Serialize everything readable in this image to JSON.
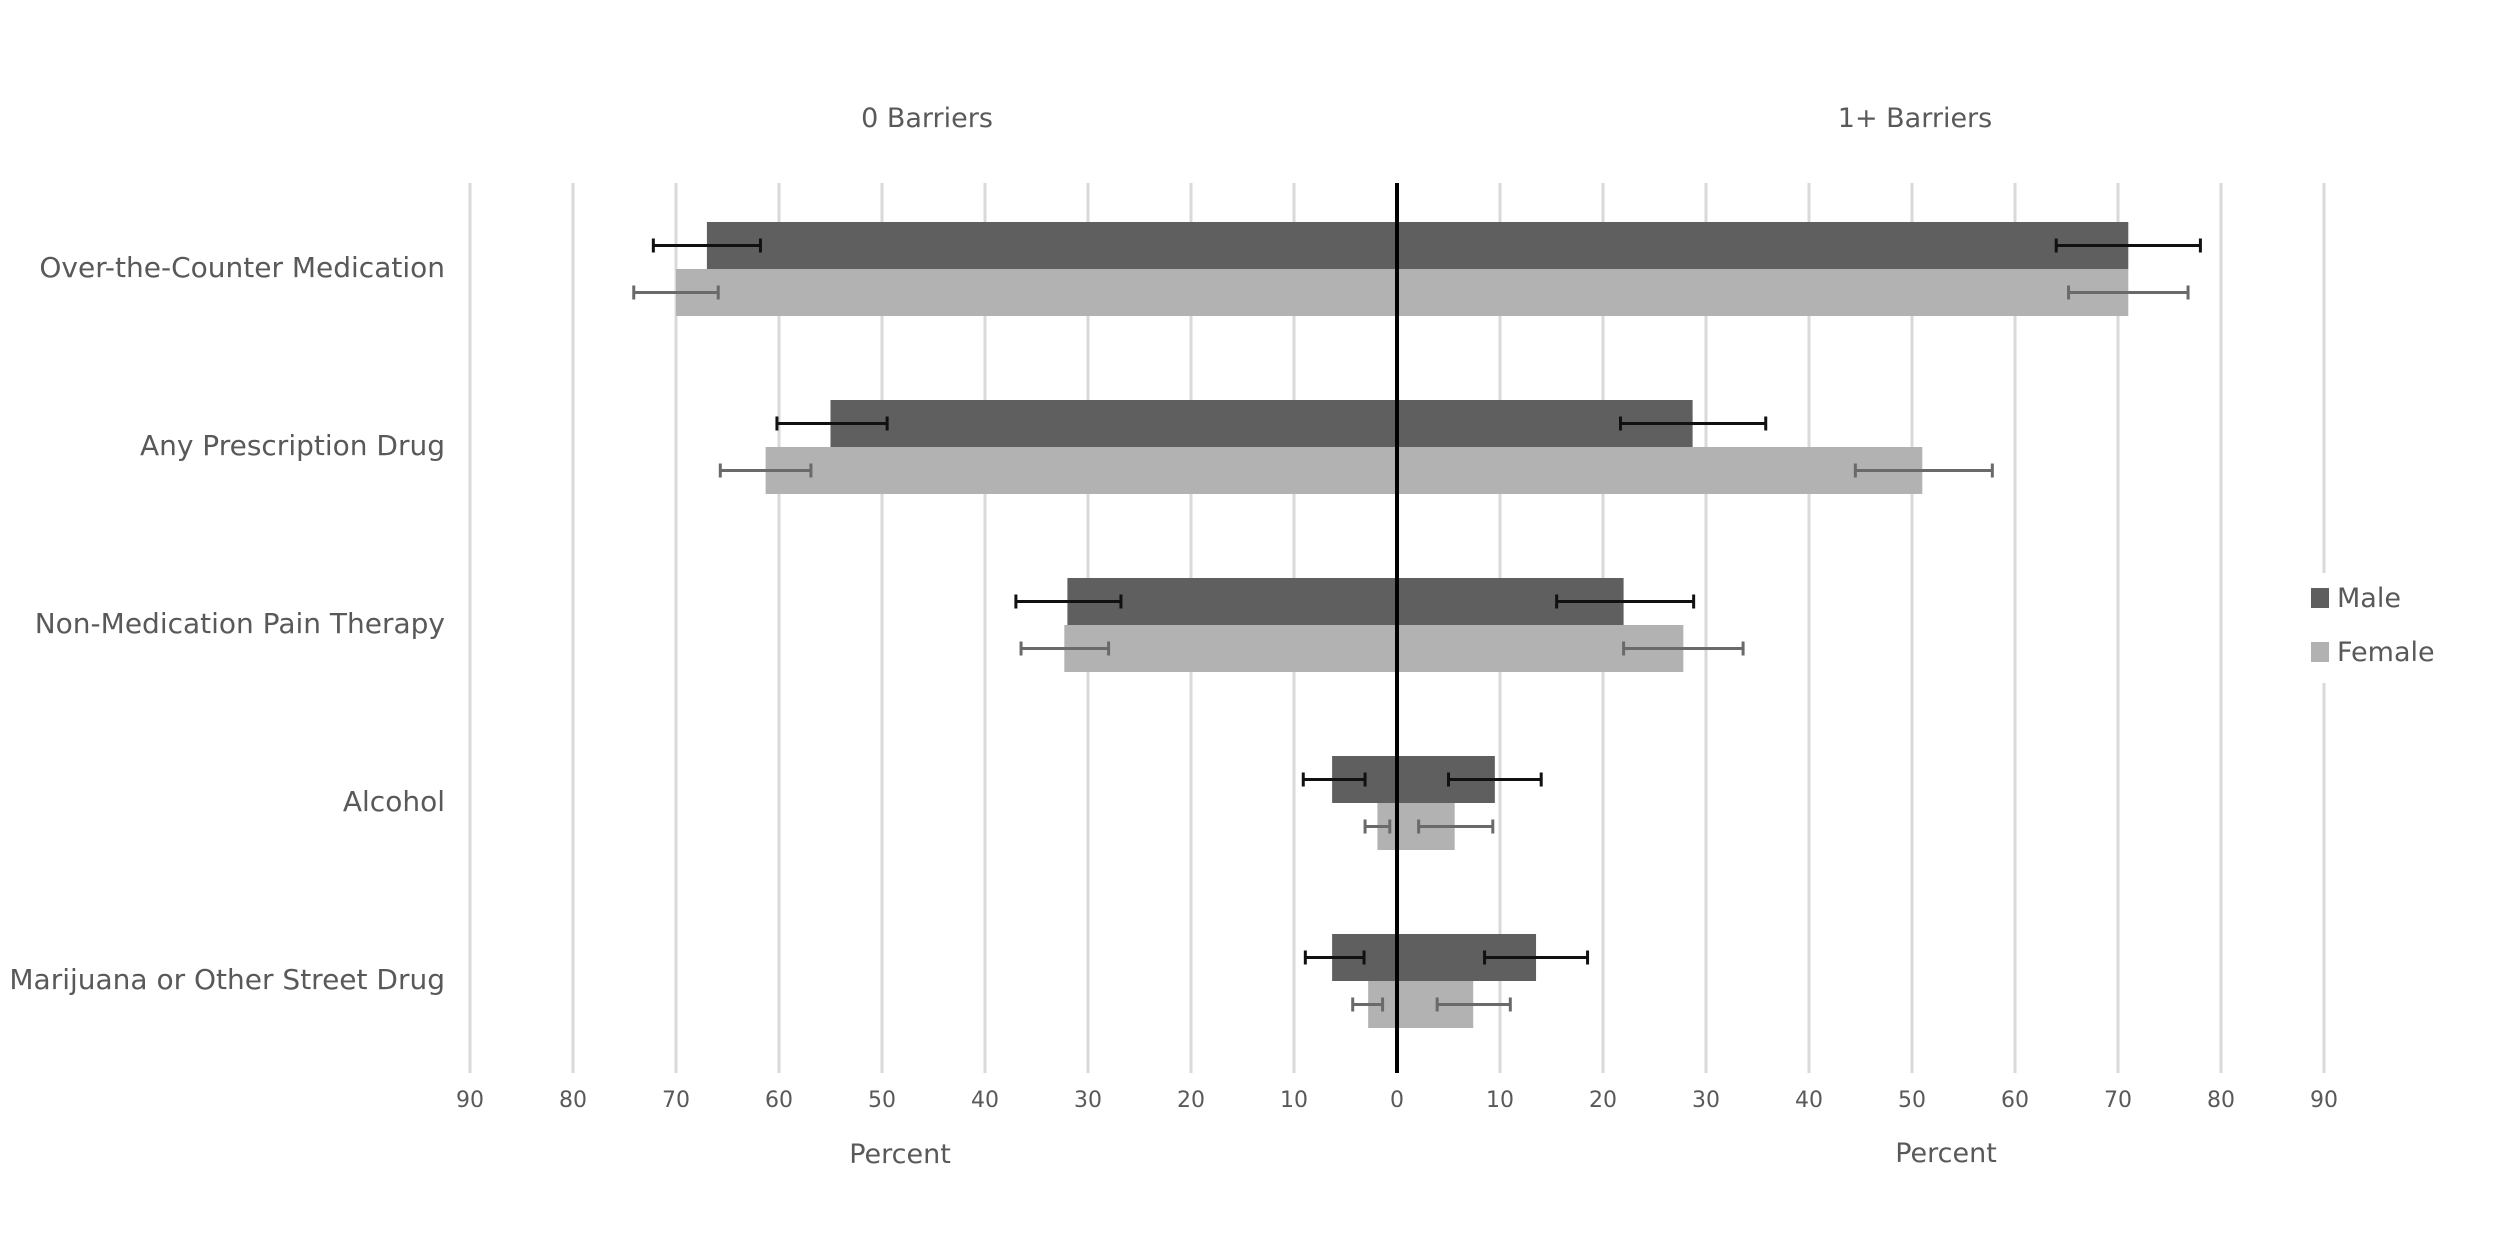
{
  "chart_data": {
    "type": "bar",
    "orientation": "horizontal",
    "layout": "butterfly",
    "panels": [
      {
        "title": "0 Barriers",
        "xlabel": "Percent",
        "direction": "left",
        "xlim": [
          0,
          90
        ]
      },
      {
        "title": "1+ Barriers",
        "xlabel": "Percent",
        "direction": "right",
        "xlim": [
          0,
          90
        ]
      }
    ],
    "ticks": [
      "90",
      "80",
      "70",
      "60",
      "50",
      "40",
      "30",
      "20",
      "10",
      "0",
      "10",
      "20",
      "30",
      "40",
      "50",
      "60",
      "70",
      "80",
      "90"
    ],
    "tick_values": [
      90,
      80,
      70,
      60,
      50,
      40,
      30,
      20,
      10,
      0,
      10,
      20,
      30,
      40,
      50,
      60,
      70,
      80,
      90
    ],
    "categories": [
      "Over-the-Counter Medication",
      "Any Prescription Drug",
      "Non-Medication Pain Therapy",
      "Alcohol",
      "Marijuana or Other Street Drug"
    ],
    "series": [
      {
        "name": "Male",
        "color": "#5f5f5f",
        "error_color": "#111111",
        "zero_barriers": [
          67.0,
          55.0,
          32.0,
          6.3,
          6.3
        ],
        "zero_barriers_err": [
          [
            61.8,
            72.2
          ],
          [
            49.5,
            60.2
          ],
          [
            26.8,
            37.0
          ],
          [
            3.1,
            9.1
          ],
          [
            3.2,
            8.9
          ]
        ],
        "one_plus_barriers": [
          71.0,
          28.7,
          22.0,
          9.5,
          13.5
        ],
        "one_plus_barriers_err": [
          [
            64.0,
            78.0
          ],
          [
            21.7,
            35.8
          ],
          [
            15.5,
            28.8
          ],
          [
            5.0,
            14.0
          ],
          [
            8.5,
            18.5
          ]
        ]
      },
      {
        "name": "Female",
        "color": "#b2b2b2",
        "error_color": "#6a6a6a",
        "zero_barriers": [
          70.0,
          61.3,
          32.3,
          1.9,
          2.8
        ],
        "zero_barriers_err": [
          [
            65.9,
            74.1
          ],
          [
            56.9,
            65.7
          ],
          [
            28.0,
            36.5
          ],
          [
            0.7,
            3.1
          ],
          [
            1.4,
            4.3
          ]
        ],
        "one_plus_barriers": [
          71.0,
          51.0,
          27.8,
          5.6,
          7.4
        ],
        "one_plus_barriers_err": [
          [
            65.2,
            76.8
          ],
          [
            44.5,
            57.8
          ],
          [
            22.0,
            33.6
          ],
          [
            2.1,
            9.3
          ],
          [
            3.9,
            11.0
          ]
        ]
      }
    ],
    "grid": true,
    "legend": {
      "position": "right",
      "entries": [
        "Male",
        "Female"
      ]
    }
  }
}
